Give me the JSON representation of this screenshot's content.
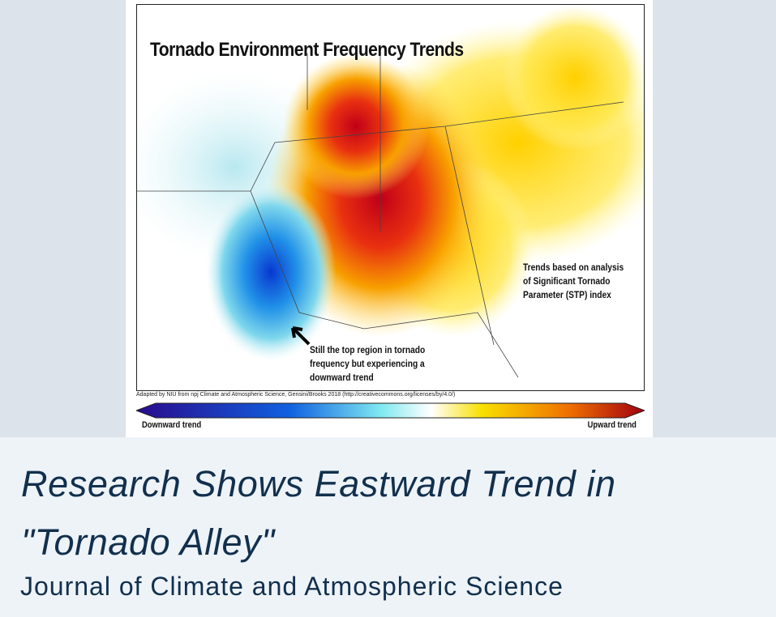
{
  "figure": {
    "map_title": "Tornado Environment Frequency Trends",
    "note_stp": [
      "Trends based on analysis",
      "of Significant Tornado",
      "Parameter (STP) index"
    ],
    "note_arrow": [
      "Still the top region in tornado",
      "frequency but experiencing a",
      "downward trend"
    ],
    "attribution": "Adapted by NIU from npj Climate and Atmospheric Science, Gensini/Brooks 2018 (http://creativecommons.org/licenses/by/4.0/)",
    "legend": {
      "low_label": "Downward trend",
      "high_label": "Upward trend",
      "colors": [
        "#2a0a8c",
        "#1060e0",
        "#7ee8f0",
        "#ffffff",
        "#f8e000",
        "#f07000",
        "#a00010"
      ]
    }
  },
  "caption": {
    "headline": "Research Shows Eastward Trend in \"Tornado Alley\"",
    "source": "Journal of Climate and Atmospheric Science"
  }
}
